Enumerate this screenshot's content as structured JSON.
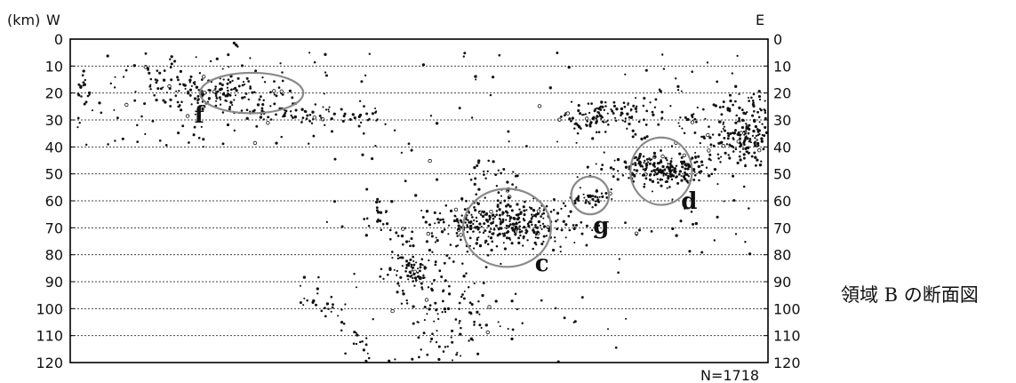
{
  "chart_data": {
    "type": "scatter",
    "title": "",
    "ylabel": "(km)",
    "xlabel": "",
    "direction_left": "W",
    "direction_right": "E",
    "ylim": [
      0,
      120
    ],
    "y_inverted": true,
    "y_ticks": [
      "0",
      "10",
      "20",
      "30",
      "40",
      "50",
      "60",
      "70",
      "80",
      "90",
      "100",
      "110",
      "120"
    ],
    "grid": "horizontal dashed at every 10 km",
    "count_label": "N=1718",
    "clusters": [
      {
        "label": "f",
        "depth_center": 20
      },
      {
        "label": "c",
        "depth_center": 70
      },
      {
        "label": "g",
        "depth_center": 58
      },
      {
        "label": "d",
        "depth_center": 49
      }
    ],
    "point_color": "#111111",
    "ring_color": "#8a8a8a"
  },
  "caption": "領域 B の断面図"
}
